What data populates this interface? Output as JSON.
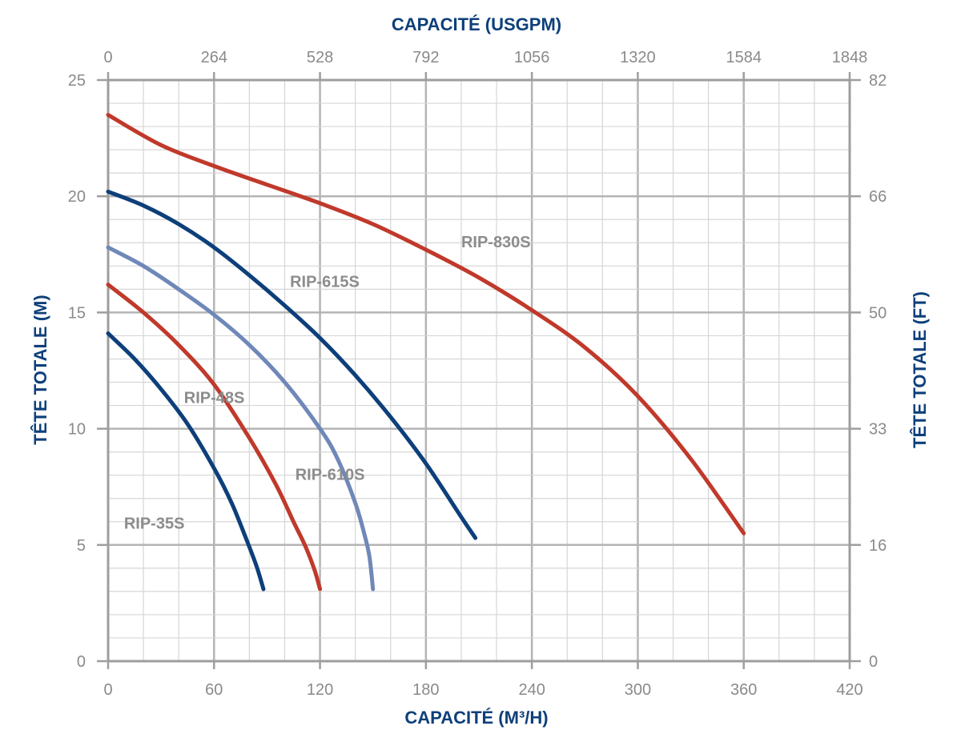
{
  "chart_data": {
    "type": "line",
    "title": "",
    "xlabel": "CAPACITÉ (M³/H)",
    "x2label": "CAPACITÉ (USGPM)",
    "ylabel": "TÊTE TOTALE (M)",
    "y2label": "TÊTE TOTALE (FT)",
    "xlim": [
      0,
      420
    ],
    "ylim": [
      0,
      25
    ],
    "x_ticks": [
      "0",
      "60",
      "120",
      "180",
      "240",
      "300",
      "360",
      "420"
    ],
    "x2_ticks": [
      "0",
      "264",
      "528",
      "792",
      "1056",
      "1320",
      "1584",
      "1848"
    ],
    "y_ticks": [
      "0",
      "5",
      "10",
      "15",
      "20",
      "25"
    ],
    "y2_ticks": [
      "0",
      "16",
      "33",
      "50",
      "66",
      "82"
    ],
    "grid": true,
    "series": [
      {
        "name": "RIP-830S",
        "color": "#c0392b",
        "x": [
          0,
          30,
          60,
          90,
          120,
          150,
          180,
          210,
          240,
          270,
          300,
          330,
          360
        ],
        "y": [
          23.5,
          22.2,
          21.3,
          20.5,
          19.7,
          18.8,
          17.7,
          16.5,
          15.1,
          13.5,
          11.4,
          8.7,
          5.5
        ]
      },
      {
        "name": "RIP-615S",
        "color": "#0d3f7a",
        "x": [
          0,
          20,
          40,
          60,
          80,
          100,
          120,
          140,
          160,
          180,
          200,
          208
        ],
        "y": [
          20.2,
          19.6,
          18.8,
          17.8,
          16.6,
          15.3,
          13.9,
          12.3,
          10.5,
          8.5,
          6.2,
          5.3
        ]
      },
      {
        "name": "RIP-610S",
        "color": "#6f88b8",
        "x": [
          0,
          20,
          40,
          60,
          80,
          100,
          120,
          130,
          140,
          145,
          148,
          150
        ],
        "y": [
          17.8,
          17.0,
          16.0,
          14.9,
          13.6,
          12.0,
          10.0,
          8.7,
          6.8,
          5.5,
          4.5,
          3.1
        ]
      },
      {
        "name": "RIP-48S",
        "color": "#c0392b",
        "x": [
          0,
          20,
          40,
          60,
          80,
          95,
          105,
          112,
          117,
          120
        ],
        "y": [
          16.2,
          15.0,
          13.6,
          11.9,
          9.6,
          7.6,
          6.0,
          4.9,
          3.9,
          3.1
        ]
      },
      {
        "name": "RIP-35S",
        "color": "#0d3f7a",
        "x": [
          0,
          15,
          30,
          45,
          60,
          70,
          78,
          84,
          88
        ],
        "y": [
          14.1,
          13.0,
          11.7,
          10.2,
          8.3,
          6.8,
          5.3,
          4.1,
          3.1
        ]
      }
    ],
    "series_labels": [
      {
        "name": "RIP-830S",
        "x": 200,
        "y": 17.8
      },
      {
        "name": "RIP-615S",
        "x": 103,
        "y": 16.1
      },
      {
        "name": "RIP-610S",
        "x": 106,
        "y": 7.8
      },
      {
        "name": "RIP-48S",
        "x": 43,
        "y": 11.1
      },
      {
        "name": "RIP-35S",
        "x": 9,
        "y": 5.7
      }
    ]
  }
}
